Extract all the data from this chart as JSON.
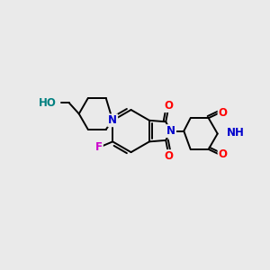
{
  "bg_color": "#eaeaea",
  "bond_color": "#000000",
  "bond_width": 1.4,
  "atom_colors": {
    "N": "#0000cc",
    "O": "#ff0000",
    "F": "#cc00cc",
    "HO": "#008080",
    "NH": "#0000cc"
  },
  "font_size": 8.5,
  "fig_size": [
    3.0,
    3.0
  ],
  "dpi": 100
}
